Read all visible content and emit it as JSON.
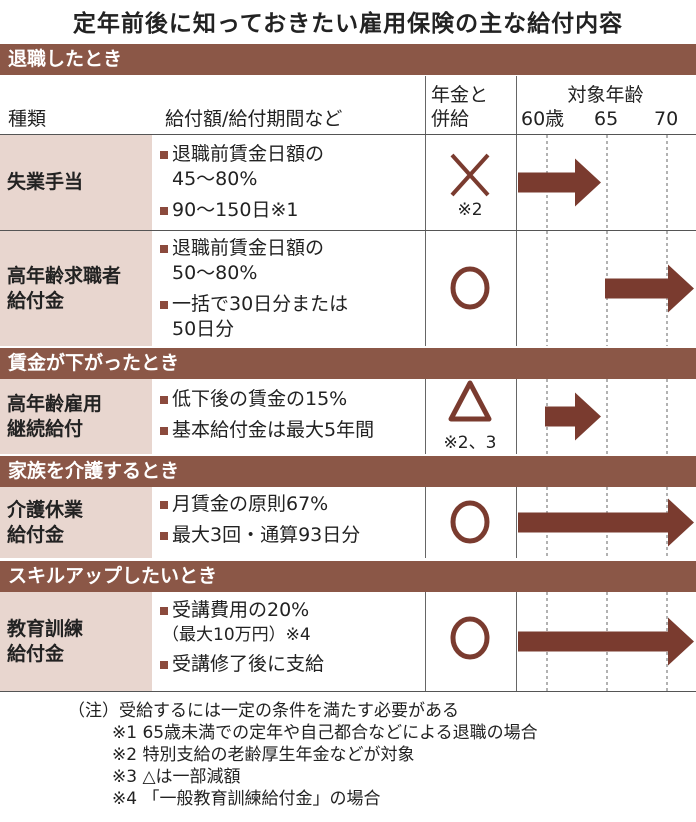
{
  "title": "定年前後に知っておきたい雇用保険の主な給付内容",
  "colors": {
    "band": "#8b5747",
    "name_cell": "#e8d6cf",
    "arrow": "#7a3b2f",
    "symbol": "#7a3b2f"
  },
  "header": {
    "type": "種類",
    "benefit": "給付額/給付期間など",
    "pension_line1": "年金と",
    "pension_line2": "併給",
    "age": "対象年齢",
    "ticks": [
      "60歳",
      "65",
      "70"
    ]
  },
  "sections": [
    {
      "label": "退職したとき"
    },
    {
      "label": "賃金が下がったとき"
    },
    {
      "label": "家族を介護するとき"
    },
    {
      "label": "スキルアップしたいとき"
    }
  ],
  "rows": [
    {
      "name1": "失業手当",
      "name2": "",
      "items": [
        "退職前賃金日額の",
        "45〜80%",
        "90〜150日※1"
      ],
      "symbol": "cross",
      "symbol_note": "※2",
      "arrow": {
        "from": null,
        "to": 65
      }
    },
    {
      "name1": "高年齢求職者",
      "name2": "給付金",
      "items": [
        "退職前賃金日額の",
        "50〜80%",
        "一括で30日分または",
        "50日分"
      ],
      "symbol": "circle",
      "symbol_note": "",
      "arrow": {
        "from": 65,
        "to": null
      }
    },
    {
      "name1": "高年齢雇用",
      "name2": "継続給付",
      "items": [
        "低下後の賃金の15%",
        "基本給付金は最大5年間"
      ],
      "symbol": "triangle",
      "symbol_note": "※2、3",
      "arrow": {
        "from": 60,
        "to": 65
      }
    },
    {
      "name1": "介護休業",
      "name2": "給付金",
      "items": [
        "月賃金の原則67%",
        "最大3回・通算93日分"
      ],
      "symbol": "circle",
      "symbol_note": "",
      "arrow": {
        "from": null,
        "to": null
      }
    },
    {
      "name1": "教育訓練",
      "name2": "給付金",
      "items": [
        "受講費用の20%",
        "（最大10万円）※4",
        "受講修了後に支給"
      ],
      "symbol": "circle",
      "symbol_note": "",
      "arrow": {
        "from": null,
        "to": null
      }
    }
  ],
  "notes": [
    "（注）受給するには一定の条件を満たす必要がある",
    "※1 65歳未満での定年や自己都合などによる退職の場合",
    "※2 特別支給の老齢厚生年金などが対象",
    "※3 △は一部減額",
    "※4 「一般教育訓練給付金」の場合"
  ]
}
